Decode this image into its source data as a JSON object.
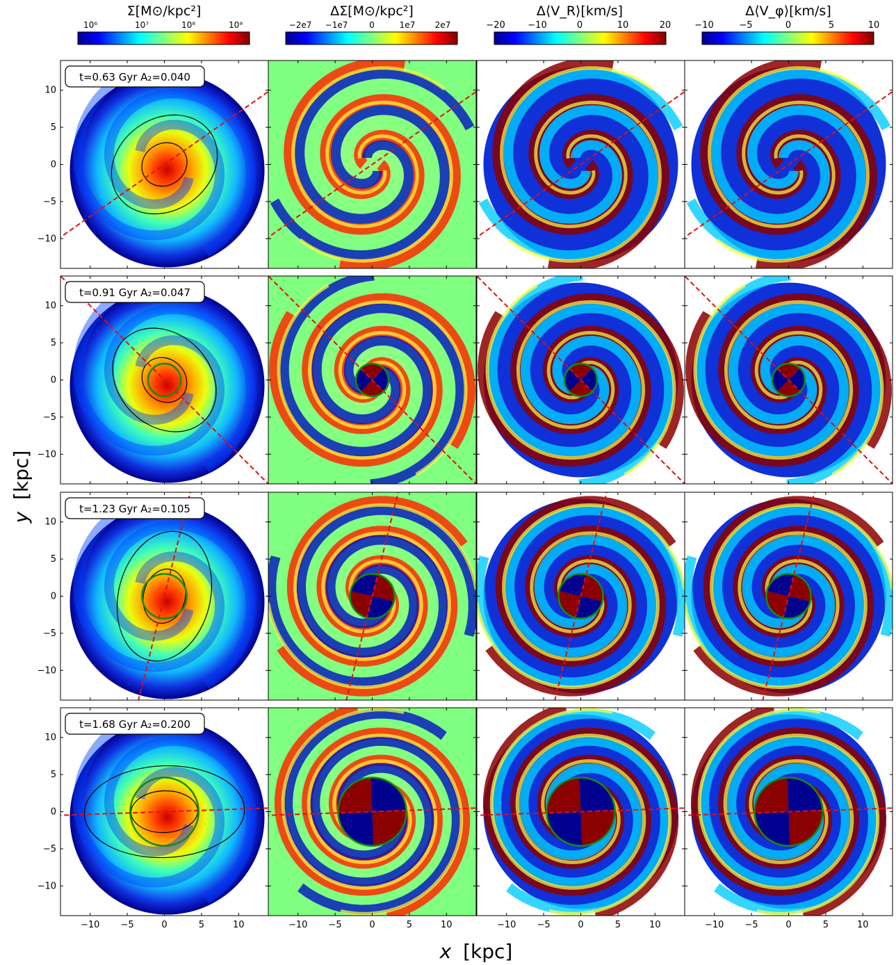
{
  "figure": {
    "xlabel_main": "x",
    "xlabel_unit": "[kpc]",
    "ylabel_main": "y",
    "ylabel_unit": "[kpc]"
  },
  "colorbars": [
    {
      "title": "Σ[M⊙/kpc²]",
      "ticks": [
        "10⁶",
        "10⁷",
        "10⁸",
        "10⁹"
      ],
      "scale": "log",
      "range": [
        1000000.0,
        1200000000.0
      ]
    },
    {
      "title": "ΔΣ[M⊙/kpc²]",
      "ticks": [
        "−2e7",
        "−1e7",
        "0",
        "1e7",
        "2e7"
      ],
      "scale": "linear",
      "range": [
        -24000000.0,
        24000000.0
      ]
    },
    {
      "title": "Δ⟨V_R⟩[km/s]",
      "ticks": [
        "−20",
        "−10",
        "0",
        "10",
        "20"
      ],
      "scale": "linear",
      "range": [
        -20,
        20
      ]
    },
    {
      "title": "Δ⟨V_φ⟩[km/s]",
      "ticks": [
        "−10",
        "−5",
        "0",
        "5",
        "10"
      ],
      "scale": "linear",
      "range": [
        -10,
        10
      ]
    }
  ],
  "chart_data": {
    "type": "heatmap",
    "colormap": "jet",
    "xlim": [
      -14,
      14
    ],
    "ylim": [
      -14,
      14
    ],
    "x_ticks": [
      -10,
      -5,
      0,
      5,
      10
    ],
    "y_ticks": [
      -10,
      -5,
      0,
      5,
      10
    ],
    "columns": [
      "Σ",
      "ΔΣ",
      "Δ⟨V_R⟩",
      "Δ⟨V_φ⟩"
    ],
    "rows": [
      {
        "label": "t=0.63 Gyr A₂=0.040",
        "t_gyr": 0.63,
        "A2": 0.04,
        "bar_angle_deg": 35,
        "circle_radius_kpc": null
      },
      {
        "label": "t=0.91 Gyr A₂=0.047",
        "t_gyr": 0.91,
        "A2": 0.047,
        "bar_angle_deg": -45,
        "circle_radius_kpc": 2.2
      },
      {
        "label": "t=1.23 Gyr A₂=0.105",
        "t_gyr": 1.23,
        "A2": 0.105,
        "bar_angle_deg": 76,
        "circle_radius_kpc": 3.0
      },
      {
        "label": "t=1.68 Gyr A₂=0.200",
        "t_gyr": 1.68,
        "A2": 0.2,
        "bar_angle_deg": 2,
        "circle_radius_kpc": 4.6
      }
    ]
  }
}
